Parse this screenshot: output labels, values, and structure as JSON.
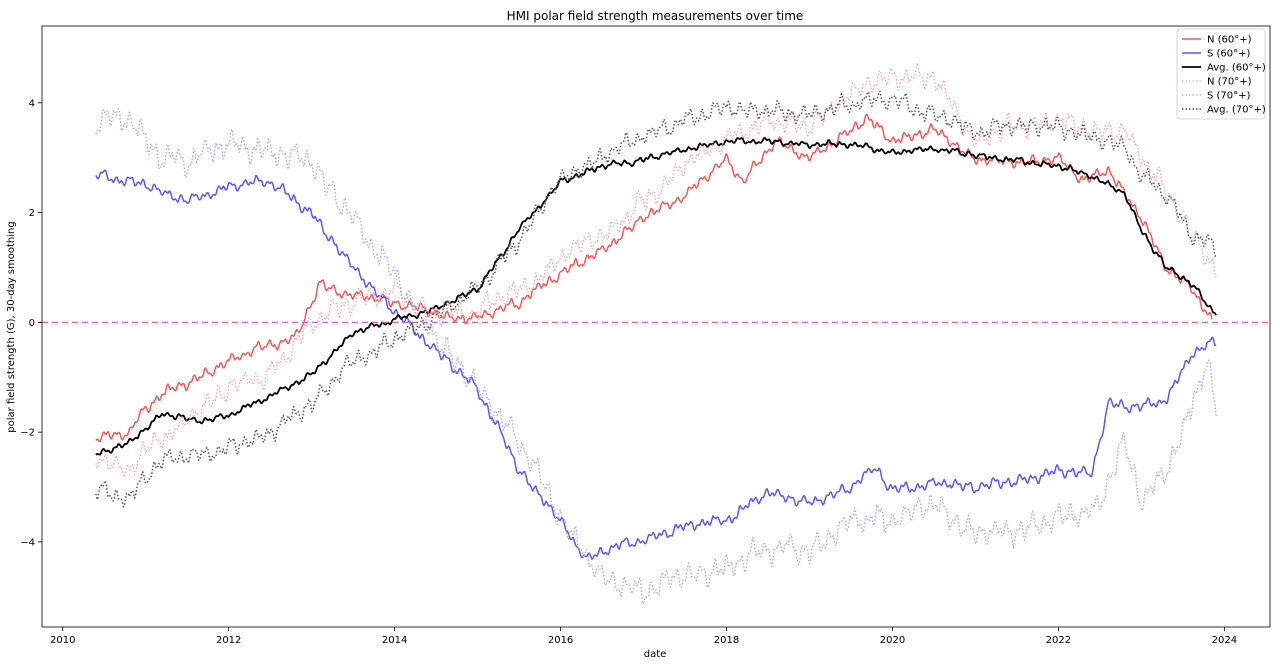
{
  "chart_data": {
    "type": "line",
    "title": "HMI polar field strength measurements over time",
    "xlabel": "date",
    "ylabel": "polar field strength (G), 30-day smoothing",
    "xlim": [
      2009.75,
      2024.55
    ],
    "ylim": [
      -5.55,
      5.4
    ],
    "xticks": [
      2010,
      2012,
      2014,
      2016,
      2018,
      2020,
      2022,
      2024
    ],
    "xtick_labels": [
      "2010",
      "2012",
      "2014",
      "2016",
      "2018",
      "2020",
      "2022",
      "2024"
    ],
    "yticks": [
      -4,
      -2,
      0,
      2,
      4
    ],
    "ytick_labels": [
      "−4",
      "−2",
      "0",
      "2",
      "4"
    ],
    "reference_line": {
      "y": 0,
      "color": "#cc66cc",
      "style": "dashed"
    },
    "legend_location": "top-right",
    "series": [
      {
        "name": "N (60°+)",
        "color": "#f05a5a",
        "style": "solid",
        "opacity": 1.0,
        "width": 1.5,
        "noise": 0.06,
        "x": [
          2010.4,
          2010.8,
          2011.0,
          2011.2,
          2011.5,
          2012.0,
          2012.3,
          2012.8,
          2013.1,
          2013.4,
          2013.8,
          2014.2,
          2014.6,
          2015.0,
          2015.5,
          2016.0,
          2016.5,
          2017.0,
          2017.5,
          2018.0,
          2018.2,
          2018.6,
          2019.0,
          2019.5,
          2019.7,
          2020.0,
          2020.5,
          2021.0,
          2021.5,
          2022.0,
          2022.3,
          2022.6,
          2023.0,
          2023.3,
          2023.6,
          2023.85
        ],
        "y": [
          -2.1,
          -2.0,
          -1.6,
          -1.3,
          -1.1,
          -0.7,
          -0.5,
          -0.3,
          0.7,
          0.5,
          0.45,
          0.3,
          0.1,
          0.1,
          0.35,
          0.9,
          1.3,
          1.9,
          2.3,
          3.0,
          2.6,
          3.3,
          3.0,
          3.5,
          3.7,
          3.3,
          3.5,
          3.0,
          2.9,
          3.0,
          2.6,
          2.8,
          1.9,
          1.0,
          0.65,
          0.0
        ]
      },
      {
        "name": "S (60°+)",
        "color": "#5a5af0",
        "style": "solid",
        "opacity": 1.0,
        "width": 1.5,
        "noise": 0.06,
        "x": [
          2010.4,
          2011.0,
          2011.5,
          2012.0,
          2012.5,
          2013.0,
          2013.5,
          2014.0,
          2014.5,
          2015.0,
          2015.5,
          2016.0,
          2016.3,
          2016.7,
          2017.0,
          2017.5,
          2018.0,
          2018.5,
          2019.0,
          2019.5,
          2019.8,
          2020.0,
          2020.5,
          2021.0,
          2021.5,
          2022.0,
          2022.4,
          2022.6,
          2023.0,
          2023.3,
          2023.6,
          2023.9
        ],
        "y": [
          2.7,
          2.5,
          2.2,
          2.5,
          2.55,
          2.0,
          1.0,
          0.2,
          -0.5,
          -1.2,
          -2.7,
          -3.6,
          -4.3,
          -4.05,
          -4.0,
          -3.7,
          -3.6,
          -3.1,
          -3.3,
          -3.0,
          -2.65,
          -3.1,
          -2.9,
          -3.0,
          -2.9,
          -2.7,
          -2.75,
          -1.5,
          -1.55,
          -1.4,
          -0.6,
          -0.35
        ]
      },
      {
        "name": "Avg. (60°+)",
        "color": "#000000",
        "style": "solid",
        "opacity": 1.0,
        "width": 1.8,
        "noise": 0.035,
        "x": [
          2010.4,
          2010.8,
          2011.2,
          2011.6,
          2012.0,
          2012.5,
          2013.0,
          2013.5,
          2014.0,
          2014.5,
          2015.0,
          2015.5,
          2016.0,
          2016.5,
          2017.0,
          2017.5,
          2018.0,
          2018.5,
          2019.0,
          2019.5,
          2020.0,
          2020.5,
          2021.0,
          2021.5,
          2022.0,
          2022.5,
          2022.8,
          2023.0,
          2023.3,
          2023.6,
          2023.9
        ],
        "y": [
          -2.4,
          -2.2,
          -1.65,
          -1.8,
          -1.7,
          -1.35,
          -0.95,
          -0.2,
          0.05,
          0.25,
          0.6,
          1.7,
          2.55,
          2.85,
          2.95,
          3.15,
          3.3,
          3.3,
          3.25,
          3.25,
          3.1,
          3.15,
          3.05,
          2.95,
          2.85,
          2.6,
          2.35,
          1.7,
          1.0,
          0.7,
          0.15
        ]
      },
      {
        "name": "N (70°+)",
        "color": "#f5a3a3",
        "style": "dotted",
        "opacity": 1.0,
        "width": 1.3,
        "noise": 0.12,
        "x": [
          2010.4,
          2010.8,
          2011.2,
          2011.6,
          2012.0,
          2012.5,
          2013.0,
          2013.5,
          2014.0,
          2014.5,
          2015.0,
          2015.5,
          2016.0,
          2016.5,
          2017.0,
          2017.5,
          2018.0,
          2018.5,
          2019.0,
          2019.5,
          2020.0,
          2020.5,
          2021.0,
          2021.5,
          2022.0,
          2022.5,
          2022.8,
          2023.0,
          2023.3,
          2023.6,
          2023.9
        ],
        "y": [
          -2.5,
          -2.7,
          -2.1,
          -1.7,
          -1.2,
          -1.0,
          0.0,
          0.35,
          0.6,
          0.1,
          0.2,
          0.6,
          1.15,
          1.6,
          2.2,
          2.9,
          3.3,
          3.7,
          3.6,
          4.2,
          4.5,
          4.5,
          3.3,
          3.6,
          3.7,
          3.5,
          3.5,
          3.0,
          2.4,
          1.6,
          0.95
        ]
      },
      {
        "name": "S (70°+)",
        "color": "#a3a3f5",
        "style": "dotted",
        "opacity": 1.0,
        "width": 1.3,
        "noise": 0.14,
        "x": [
          2010.4,
          2010.8,
          2011.2,
          2011.6,
          2012.0,
          2012.5,
          2013.0,
          2013.5,
          2014.0,
          2014.5,
          2015.0,
          2015.5,
          2016.0,
          2016.5,
          2017.0,
          2017.5,
          2018.0,
          2018.5,
          2019.0,
          2019.5,
          2020.0,
          2020.5,
          2021.0,
          2021.5,
          2022.0,
          2022.5,
          2022.8,
          2023.0,
          2023.3,
          2023.6,
          2023.8,
          2023.9
        ],
        "y": [
          3.6,
          3.7,
          3.0,
          3.0,
          3.2,
          3.1,
          2.9,
          1.9,
          0.9,
          -0.3,
          -1.2,
          -2.2,
          -3.6,
          -4.7,
          -4.9,
          -4.6,
          -4.5,
          -4.1,
          -4.2,
          -3.6,
          -3.6,
          -3.3,
          -3.9,
          -3.7,
          -3.6,
          -3.3,
          -2.2,
          -3.2,
          -2.7,
          -1.6,
          -0.6,
          -1.7
        ]
      },
      {
        "name": "Avg. (70°+)",
        "color": "#555555",
        "style": "dotted",
        "opacity": 1.0,
        "width": 1.5,
        "noise": 0.1,
        "x": [
          2010.4,
          2010.8,
          2011.2,
          2011.6,
          2012.0,
          2012.5,
          2013.0,
          2013.5,
          2014.0,
          2014.5,
          2015.0,
          2015.5,
          2016.0,
          2016.5,
          2017.0,
          2017.5,
          2018.0,
          2018.5,
          2019.0,
          2019.5,
          2020.0,
          2020.5,
          2021.0,
          2021.5,
          2022.0,
          2022.5,
          2022.8,
          2023.0,
          2023.3,
          2023.6,
          2023.9
        ],
        "y": [
          -3.05,
          -3.2,
          -2.5,
          -2.45,
          -2.3,
          -2.0,
          -1.5,
          -0.7,
          -0.3,
          0.1,
          0.6,
          1.5,
          2.6,
          3.0,
          3.4,
          3.7,
          3.9,
          3.85,
          3.8,
          4.0,
          4.1,
          3.8,
          3.5,
          3.6,
          3.55,
          3.3,
          3.2,
          2.7,
          2.3,
          1.6,
          1.3
        ]
      }
    ]
  }
}
